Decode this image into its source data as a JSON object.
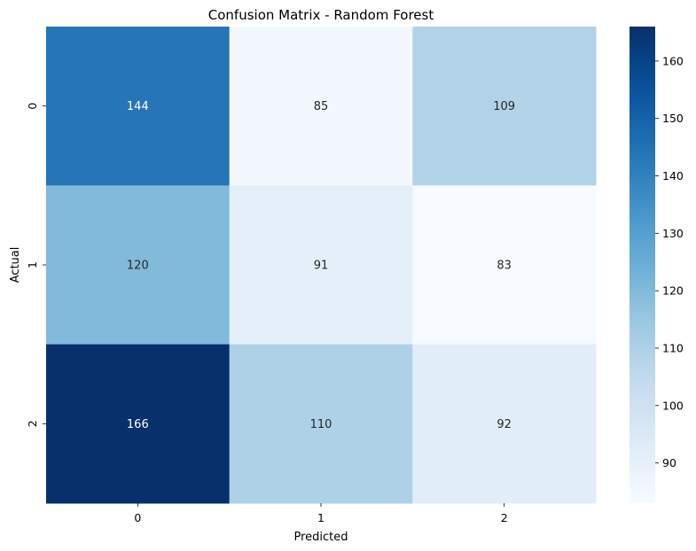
{
  "chart_data": {
    "type": "heatmap",
    "title": "Confusion Matrix - Random Forest",
    "xlabel": "Predicted",
    "ylabel": "Actual",
    "x_categories": [
      "0",
      "1",
      "2"
    ],
    "y_categories": [
      "0",
      "1",
      "2"
    ],
    "values": [
      [
        144,
        85,
        109
      ],
      [
        120,
        91,
        83
      ],
      [
        166,
        110,
        92
      ]
    ],
    "colormap": "Blues",
    "vmin": 83,
    "vmax": 166,
    "colorbar_ticks": [
      "90",
      "100",
      "110",
      "120",
      "130",
      "140",
      "150",
      "160"
    ],
    "grid": false,
    "colorbar_position": "right"
  }
}
